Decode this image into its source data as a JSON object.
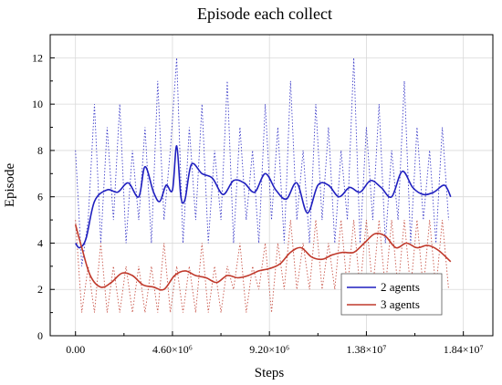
{
  "chart_data": {
    "type": "line",
    "title": "Episode each collect",
    "xlabel": "Steps",
    "ylabel": "Episode",
    "xlim": [
      -1200000,
      19800000
    ],
    "ylim": [
      0,
      13
    ],
    "xticks": [
      {
        "value": 0,
        "label": "0.00"
      },
      {
        "value": 4600000,
        "label": "4.60×10⁶"
      },
      {
        "value": 9200000,
        "label": "9.20×10⁶"
      },
      {
        "value": 13800000,
        "label": "1.38×10⁷"
      },
      {
        "value": 18400000,
        "label": "1.84×10⁷"
      }
    ],
    "yticks": [
      0,
      2,
      4,
      6,
      8,
      10,
      12
    ],
    "grid": true,
    "legend_position": "bottom-right",
    "series": [
      {
        "name": "2 agents",
        "color": "#1f1fbf",
        "smoothed": {
          "x": [
            0,
            200000,
            500000,
            900000,
            1500000,
            2000000,
            2500000,
            3000000,
            3300000,
            3700000,
            4000000,
            4300000,
            4600000,
            4800000,
            5000000,
            5200000,
            5500000,
            6000000,
            6500000,
            7000000,
            7500000,
            8000000,
            8500000,
            9000000,
            9500000,
            10000000,
            10500000,
            11000000,
            11500000,
            12000000,
            12500000,
            13000000,
            13500000,
            14000000,
            14500000,
            15000000,
            15500000,
            16000000,
            16500000,
            17000000,
            17500000,
            17800000
          ],
          "y": [
            4.0,
            3.8,
            4.2,
            5.8,
            6.3,
            6.2,
            6.6,
            6.0,
            7.3,
            6.2,
            5.8,
            6.5,
            6.3,
            8.2,
            6.0,
            5.9,
            7.4,
            7.0,
            6.8,
            6.1,
            6.7,
            6.6,
            6.2,
            7.0,
            6.3,
            5.9,
            6.6,
            5.3,
            6.5,
            6.5,
            6.0,
            6.4,
            6.2,
            6.7,
            6.4,
            6.0,
            7.1,
            6.4,
            6.1,
            6.2,
            6.5,
            6.0
          ]
        },
        "raw": {
          "x": [
            0,
            300000,
            600000,
            900000,
            1200000,
            1500000,
            1800000,
            2100000,
            2400000,
            2700000,
            3000000,
            3300000,
            3600000,
            3900000,
            4200000,
            4500000,
            4800000,
            5100000,
            5400000,
            5700000,
            6000000,
            6300000,
            6600000,
            6900000,
            7200000,
            7500000,
            7800000,
            8100000,
            8400000,
            8700000,
            9000000,
            9300000,
            9600000,
            9900000,
            10200000,
            10500000,
            10800000,
            11100000,
            11400000,
            11700000,
            12000000,
            12300000,
            12600000,
            12900000,
            13200000,
            13500000,
            13800000,
            14100000,
            14400000,
            14700000,
            15000000,
            15300000,
            15600000,
            15900000,
            16200000,
            16500000,
            16800000,
            17100000,
            17400000,
            17700000
          ],
          "y": [
            8,
            3,
            5,
            10,
            4,
            9,
            5,
            10,
            4,
            8,
            5,
            9,
            4,
            11,
            5,
            8,
            12,
            4,
            9,
            5,
            10,
            4,
            8,
            5,
            11,
            4,
            9,
            5,
            8,
            4,
            10,
            5,
            9,
            4,
            11,
            5,
            8,
            4,
            10,
            5,
            9,
            4,
            8,
            5,
            12,
            4,
            9,
            5,
            10,
            4,
            8,
            5,
            11,
            4,
            9,
            5,
            8,
            4,
            9,
            5
          ]
        }
      },
      {
        "name": "3 agents",
        "color": "#c0392b",
        "smoothed": {
          "x": [
            0,
            300000,
            700000,
            1200000,
            1700000,
            2200000,
            2700000,
            3200000,
            3700000,
            4200000,
            4700000,
            5200000,
            5700000,
            6200000,
            6700000,
            7200000,
            7700000,
            8200000,
            8700000,
            9200000,
            9700000,
            10200000,
            10700000,
            11200000,
            11700000,
            12200000,
            12700000,
            13200000,
            13700000,
            14200000,
            14700000,
            15200000,
            15700000,
            16200000,
            16700000,
            17200000,
            17800000
          ],
          "y": [
            4.8,
            3.8,
            2.6,
            2.1,
            2.3,
            2.7,
            2.6,
            2.2,
            2.1,
            2.0,
            2.6,
            2.8,
            2.6,
            2.5,
            2.3,
            2.6,
            2.5,
            2.6,
            2.8,
            2.9,
            3.1,
            3.6,
            3.8,
            3.4,
            3.3,
            3.5,
            3.6,
            3.6,
            4.0,
            4.4,
            4.3,
            3.8,
            4.0,
            3.8,
            3.9,
            3.7,
            3.2
          ]
        },
        "raw": {
          "x": [
            0,
            300000,
            600000,
            900000,
            1200000,
            1500000,
            1800000,
            2100000,
            2400000,
            2700000,
            3000000,
            3300000,
            3600000,
            3900000,
            4200000,
            4500000,
            4800000,
            5100000,
            5400000,
            5700000,
            6000000,
            6300000,
            6600000,
            6900000,
            7200000,
            7500000,
            7800000,
            8100000,
            8400000,
            8700000,
            9000000,
            9300000,
            9600000,
            9900000,
            10200000,
            10500000,
            10800000,
            11100000,
            11400000,
            11700000,
            12000000,
            12300000,
            12600000,
            12900000,
            13200000,
            13500000,
            13800000,
            14100000,
            14400000,
            14700000,
            15000000,
            15300000,
            15600000,
            15900000,
            16200000,
            16500000,
            16800000,
            17100000,
            17400000,
            17700000
          ],
          "y": [
            5,
            1,
            3,
            1,
            4,
            1,
            3,
            1,
            3,
            1,
            3,
            1,
            3,
            1,
            4,
            1,
            3,
            1,
            3,
            1,
            4,
            1,
            3,
            1,
            3,
            2,
            4,
            1,
            3,
            2,
            4,
            1,
            4,
            2,
            5,
            2,
            4,
            2,
            5,
            2,
            4,
            2,
            5,
            2,
            5,
            2,
            5,
            2,
            5,
            2,
            5,
            2,
            5,
            2,
            5,
            2,
            5,
            2,
            5,
            2
          ]
        }
      }
    ]
  }
}
